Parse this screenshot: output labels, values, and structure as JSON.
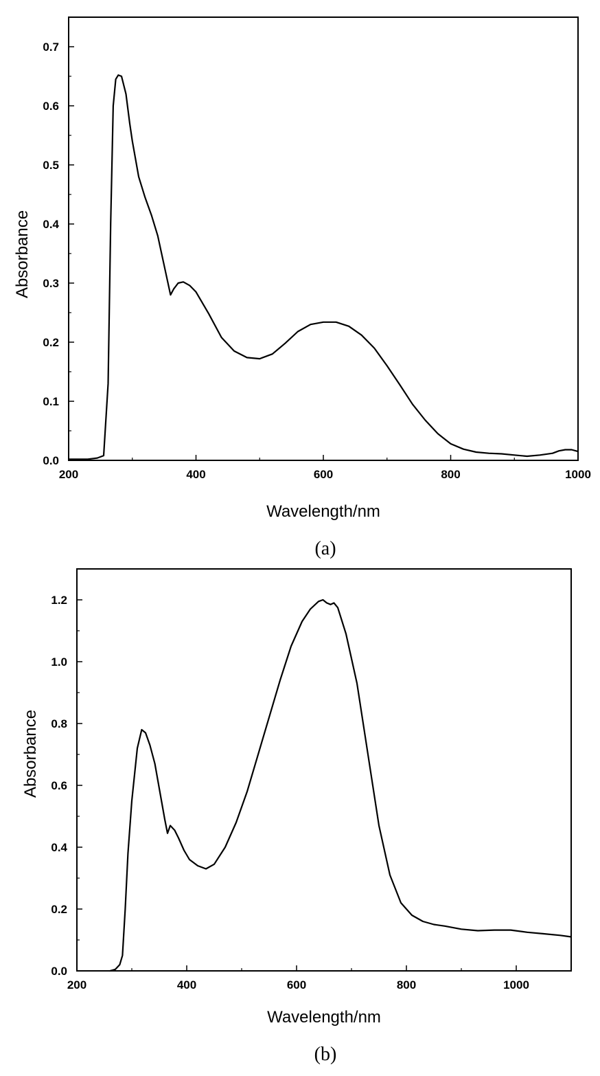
{
  "chart_data": [
    {
      "type": "line",
      "caption": "(a)",
      "xlabel": "Wavelength/nm",
      "ylabel": "Absorbance",
      "xlim": [
        200,
        1000
      ],
      "ylim": [
        0,
        0.75
      ],
      "xticks": [
        200,
        400,
        600,
        800,
        1000
      ],
      "xtick_labels": [
        "200",
        "400",
        "600",
        "800",
        "1000"
      ],
      "yticks": [
        0,
        0.1,
        0.2,
        0.3,
        0.4,
        0.5,
        0.6,
        0.7
      ],
      "ytick_labels": [
        "0.0",
        "0.1",
        "0.2",
        "0.3",
        "0.4",
        "0.5",
        "0.6",
        "0.7"
      ],
      "grid": false,
      "line_color": "#000000",
      "series": [
        {
          "x": [
            200,
            230,
            245,
            255,
            262,
            266,
            270,
            274,
            278,
            283,
            290,
            296,
            300,
            310,
            320,
            330,
            340,
            350,
            360,
            365,
            372,
            380,
            390,
            400,
            420,
            440,
            460,
            480,
            500,
            520,
            540,
            560,
            580,
            600,
            620,
            640,
            660,
            680,
            700,
            720,
            740,
            760,
            780,
            800,
            820,
            840,
            860,
            880,
            900,
            920,
            940,
            960,
            970,
            980,
            990,
            1000
          ],
          "y": [
            0.002,
            0.002,
            0.004,
            0.008,
            0.13,
            0.4,
            0.6,
            0.645,
            0.652,
            0.65,
            0.62,
            0.57,
            0.54,
            0.48,
            0.445,
            0.415,
            0.38,
            0.33,
            0.28,
            0.29,
            0.3,
            0.302,
            0.296,
            0.285,
            0.248,
            0.208,
            0.185,
            0.174,
            0.172,
            0.18,
            0.198,
            0.218,
            0.23,
            0.234,
            0.234,
            0.227,
            0.212,
            0.19,
            0.16,
            0.128,
            0.095,
            0.068,
            0.045,
            0.028,
            0.019,
            0.014,
            0.012,
            0.011,
            0.009,
            0.007,
            0.009,
            0.012,
            0.016,
            0.018,
            0.018,
            0.015
          ]
        }
      ]
    },
    {
      "type": "line",
      "caption": "(b)",
      "xlabel": "Wavelength/nm",
      "ylabel": "Absorbance",
      "xlim": [
        200,
        1100
      ],
      "ylim": [
        0,
        1.3
      ],
      "xticks": [
        200,
        400,
        600,
        800,
        1000
      ],
      "xtick_labels": [
        "200",
        "400",
        "600",
        "800",
        "1000"
      ],
      "yticks": [
        0,
        0.2,
        0.4,
        0.6,
        0.8,
        1.0,
        1.2
      ],
      "ytick_labels": [
        "0.0",
        "0.2",
        "0.4",
        "0.6",
        "0.8",
        "1.0",
        "1.2"
      ],
      "grid": false,
      "line_color": "#000000",
      "series": [
        {
          "x": [
            260,
            270,
            278,
            283,
            288,
            293,
            300,
            310,
            318,
            325,
            333,
            342,
            352,
            360,
            365,
            370,
            378,
            385,
            395,
            405,
            420,
            435,
            450,
            470,
            490,
            510,
            530,
            550,
            570,
            590,
            610,
            625,
            640,
            648,
            655,
            662,
            668,
            675,
            690,
            710,
            730,
            750,
            770,
            790,
            810,
            830,
            850,
            870,
            900,
            930,
            960,
            990,
            1020,
            1050,
            1080,
            1100
          ],
          "y": [
            0.0,
            0.005,
            0.02,
            0.05,
            0.2,
            0.38,
            0.55,
            0.72,
            0.78,
            0.77,
            0.73,
            0.67,
            0.57,
            0.49,
            0.445,
            0.47,
            0.455,
            0.43,
            0.39,
            0.36,
            0.34,
            0.33,
            0.345,
            0.4,
            0.48,
            0.58,
            0.7,
            0.82,
            0.94,
            1.05,
            1.13,
            1.17,
            1.195,
            1.2,
            1.19,
            1.185,
            1.19,
            1.175,
            1.09,
            0.93,
            0.7,
            0.47,
            0.31,
            0.22,
            0.18,
            0.16,
            0.15,
            0.145,
            0.135,
            0.13,
            0.132,
            0.132,
            0.125,
            0.12,
            0.115,
            0.11
          ]
        }
      ]
    }
  ]
}
